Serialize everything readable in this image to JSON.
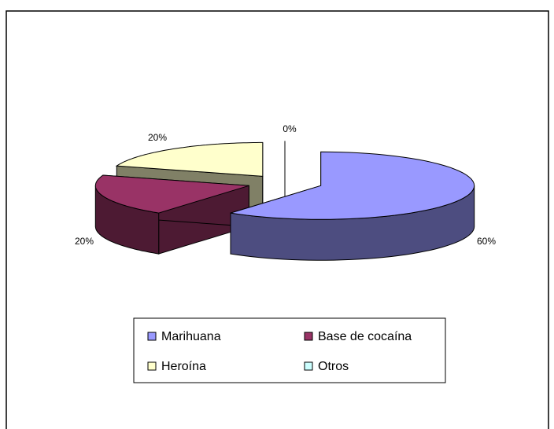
{
  "chart_data": {
    "type": "pie3d",
    "categories": [
      "Marihuana",
      "Base de cocaína",
      "Heroína",
      "Otros"
    ],
    "values": [
      60,
      20,
      20,
      0
    ],
    "value_labels": [
      "60%",
      "20%",
      "20%",
      "0%"
    ],
    "colors": [
      "#9999ff",
      "#993366",
      "#ffffcc",
      "#ccffff"
    ],
    "legend": "bottom"
  }
}
